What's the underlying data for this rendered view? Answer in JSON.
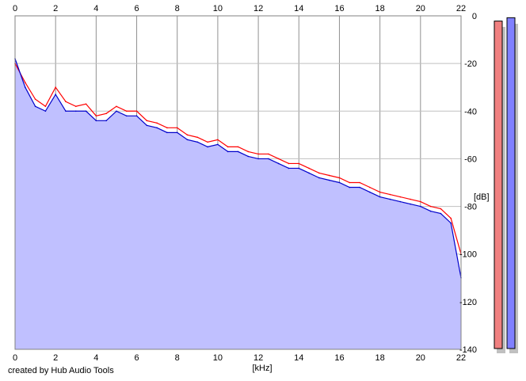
{
  "footer": {
    "credit": "created by Hub Audio Tools"
  },
  "meters": {
    "left_color": "#f08080",
    "right_color": "#8080ff",
    "left_level": 0.975,
    "right_level": 0.985
  },
  "chart_data": {
    "type": "line",
    "title": "",
    "xlabel": "[kHz]",
    "ylabel": "[dB]",
    "xlim": [
      0,
      22
    ],
    "ylim": [
      -140,
      0
    ],
    "x_ticks": [
      0,
      2,
      4,
      6,
      8,
      10,
      12,
      14,
      16,
      18,
      20,
      22
    ],
    "y_ticks": [
      0,
      -20,
      -40,
      -60,
      -80,
      -100,
      -120,
      -140
    ],
    "grid": true,
    "fill_color": "#c0c0ff",
    "series": [
      {
        "color": "#ff0000",
        "x": [
          0,
          0.5,
          1,
          1.5,
          2,
          2.5,
          3,
          3.5,
          4,
          4.5,
          5,
          5.5,
          6,
          6.5,
          7,
          7.5,
          8,
          8.5,
          9,
          9.5,
          10,
          10.5,
          11,
          11.5,
          12,
          12.5,
          13,
          13.5,
          14,
          14.5,
          15,
          15.5,
          16,
          16.5,
          17,
          17.5,
          18,
          18.5,
          19,
          19.5,
          20,
          20.5,
          21,
          21.5,
          22
        ],
        "y": [
          -20,
          -28,
          -35,
          -38,
          -30,
          -36,
          -38,
          -37,
          -42,
          -41,
          -38,
          -40,
          -40,
          -44,
          -45,
          -47,
          -47,
          -50,
          -51,
          -53,
          -52,
          -55,
          -55,
          -57,
          -58,
          -58,
          -60,
          -62,
          -62,
          -64,
          -66,
          -67,
          -68,
          -70,
          -70,
          -72,
          -74,
          -75,
          -76,
          -77,
          -78,
          -80,
          -81,
          -85,
          -100
        ]
      },
      {
        "color": "#0000cc",
        "x": [
          0,
          0.5,
          1,
          1.5,
          2,
          2.5,
          3,
          3.5,
          4,
          4.5,
          5,
          5.5,
          6,
          6.5,
          7,
          7.5,
          8,
          8.5,
          9,
          9.5,
          10,
          10.5,
          11,
          11.5,
          12,
          12.5,
          13,
          13.5,
          14,
          14.5,
          15,
          15.5,
          16,
          16.5,
          17,
          17.5,
          18,
          18.5,
          19,
          19.5,
          20,
          20.5,
          21,
          21.5,
          22
        ],
        "y": [
          -18,
          -30,
          -38,
          -40,
          -33,
          -40,
          -40,
          -40,
          -44,
          -44,
          -40,
          -42,
          -42,
          -46,
          -47,
          -49,
          -49,
          -52,
          -53,
          -55,
          -54,
          -57,
          -57,
          -59,
          -60,
          -60,
          -62,
          -64,
          -64,
          -66,
          -68,
          -69,
          -70,
          -72,
          -72,
          -74,
          -76,
          -77,
          -78,
          -79,
          -80,
          -82,
          -83,
          -87,
          -110
        ]
      }
    ]
  }
}
